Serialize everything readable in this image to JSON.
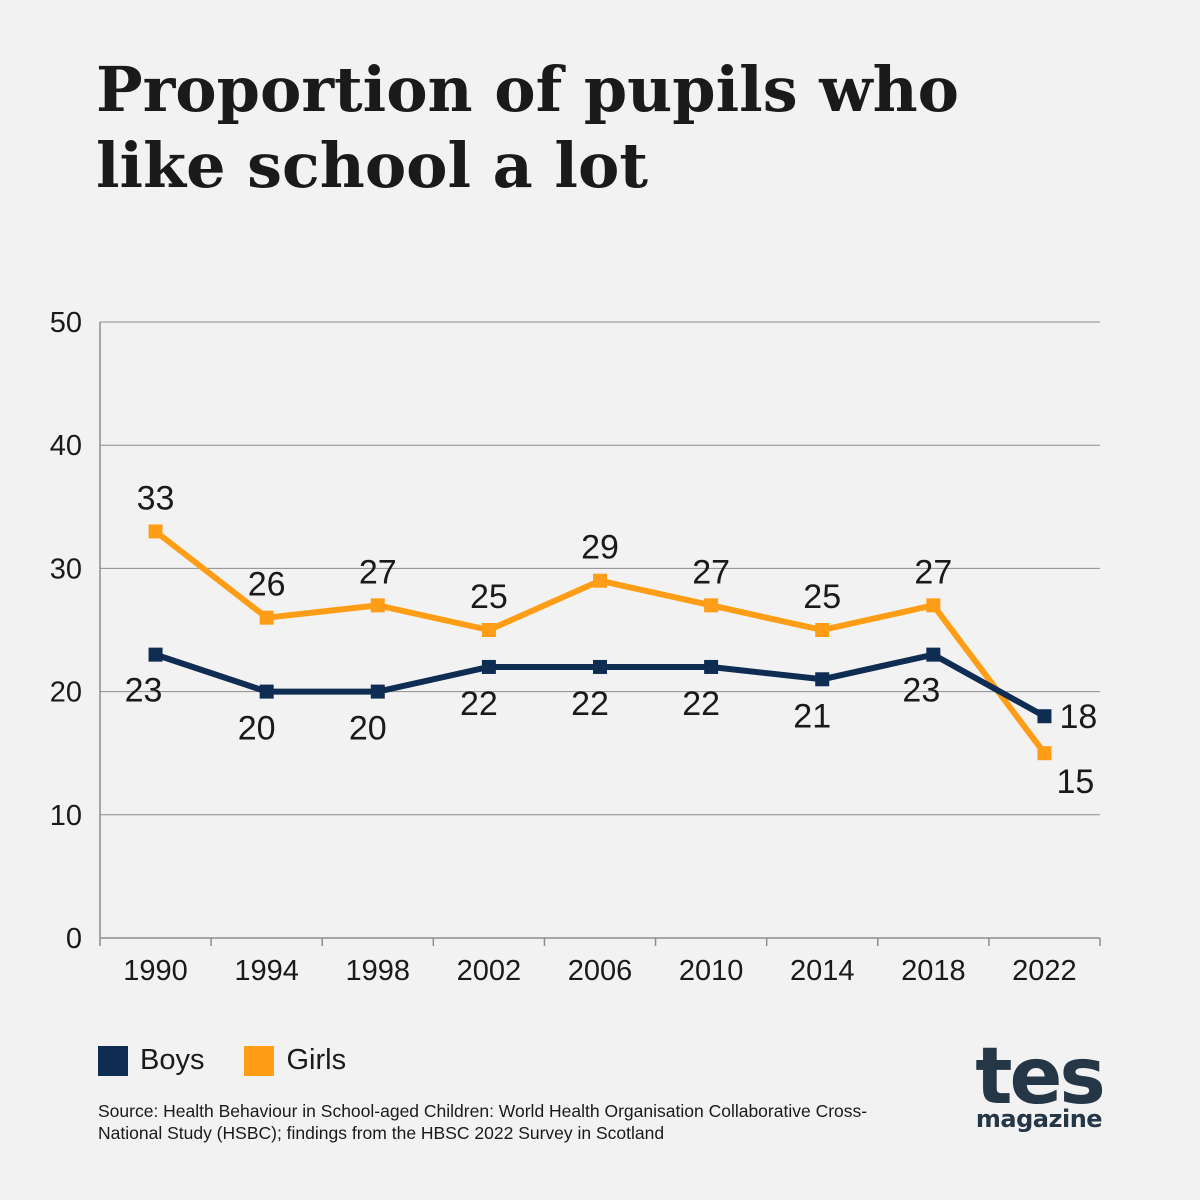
{
  "chart_data": {
    "type": "line",
    "title": "Proportion of pupils who like school a lot",
    "categories": [
      "1990",
      "1994",
      "1998",
      "2002",
      "2006",
      "2010",
      "2014",
      "2018",
      "2022"
    ],
    "y_ticks": [
      "0",
      "10",
      "20",
      "30",
      "40",
      "50"
    ],
    "ylim": [
      0,
      50
    ],
    "grid": true,
    "legend_position": "bottom-left",
    "series": [
      {
        "name": "Boys",
        "color": "#0f2d52",
        "values": [
          23,
          20,
          20,
          22,
          22,
          22,
          21,
          23,
          18
        ],
        "labels": [
          "23",
          "20",
          "20",
          "22",
          "22",
          "22",
          "21",
          "23",
          "18"
        ]
      },
      {
        "name": "Girls",
        "color": "#ff9e16",
        "values": [
          33,
          26,
          27,
          25,
          29,
          27,
          25,
          27,
          15
        ],
        "labels": [
          "33",
          "26",
          "27",
          "25",
          "29",
          "27",
          "25",
          "27",
          "15"
        ]
      }
    ]
  },
  "legend": {
    "boys": "Boys",
    "girls": "Girls"
  },
  "source": "Source: Health Behaviour in School-aged Children: World Health Organisation Collaborative Cross-National Study (HSBC); findings from the HBSC 2022 Survey in Scotland",
  "logo": {
    "main": "tes",
    "sub": "magazine"
  }
}
